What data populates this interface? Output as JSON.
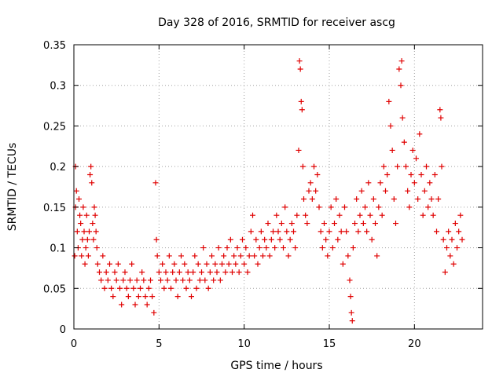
{
  "chart_data": {
    "type": "scatter",
    "title": "Day 328 of 2016, SRMTID for receiver ascg",
    "xlabel": "GPS time / hours",
    "ylabel": "SRMTID / TECUs",
    "xlim": [
      0,
      24
    ],
    "ylim": [
      0,
      0.35
    ],
    "x_ticks": [
      0,
      5,
      10,
      15,
      20
    ],
    "x_tick_labels": [
      "0",
      "5",
      "10",
      "15",
      "20"
    ],
    "y_ticks": [
      0,
      0.05,
      0.1,
      0.15,
      0.2,
      0.25,
      0.3,
      0.35
    ],
    "y_tick_labels": [
      "0",
      "0.05",
      "0.1",
      "0.15",
      "0.2",
      "0.25",
      "0.3",
      "0.35"
    ],
    "grid": true,
    "marker": "+",
    "color": "#e00000",
    "series": [
      {
        "name": "SRMTID",
        "points": [
          [
            0.05,
            0.09
          ],
          [
            0.1,
            0.2
          ],
          [
            0.1,
            0.15
          ],
          [
            0.15,
            0.17
          ],
          [
            0.2,
            0.12
          ],
          [
            0.25,
            0.1
          ],
          [
            0.3,
            0.16
          ],
          [
            0.35,
            0.14
          ],
          [
            0.4,
            0.13
          ],
          [
            0.45,
            0.09
          ],
          [
            0.5,
            0.11
          ],
          [
            0.55,
            0.15
          ],
          [
            0.6,
            0.12
          ],
          [
            0.65,
            0.08
          ],
          [
            0.7,
            0.1
          ],
          [
            0.75,
            0.14
          ],
          [
            0.8,
            0.11
          ],
          [
            0.85,
            0.09
          ],
          [
            0.9,
            0.12
          ],
          [
            0.95,
            0.19
          ],
          [
            1.0,
            0.2
          ],
          [
            1.05,
            0.18
          ],
          [
            1.1,
            0.13
          ],
          [
            1.15,
            0.11
          ],
          [
            1.2,
            0.15
          ],
          [
            1.25,
            0.14
          ],
          [
            1.3,
            0.12
          ],
          [
            1.35,
            0.1
          ],
          [
            1.4,
            0.08
          ],
          [
            1.5,
            0.07
          ],
          [
            1.6,
            0.06
          ],
          [
            1.7,
            0.09
          ],
          [
            1.8,
            0.05
          ],
          [
            1.9,
            0.07
          ],
          [
            2.0,
            0.06
          ],
          [
            2.1,
            0.08
          ],
          [
            2.2,
            0.05
          ],
          [
            2.3,
            0.04
          ],
          [
            2.4,
            0.07
          ],
          [
            2.5,
            0.06
          ],
          [
            2.6,
            0.08
          ],
          [
            2.7,
            0.05
          ],
          [
            2.8,
            0.03
          ],
          [
            2.9,
            0.06
          ],
          [
            3.0,
            0.07
          ],
          [
            3.1,
            0.05
          ],
          [
            3.2,
            0.04
          ],
          [
            3.3,
            0.06
          ],
          [
            3.4,
            0.08
          ],
          [
            3.5,
            0.05
          ],
          [
            3.6,
            0.03
          ],
          [
            3.7,
            0.06
          ],
          [
            3.8,
            0.04
          ],
          [
            3.9,
            0.05
          ],
          [
            4.0,
            0.07
          ],
          [
            4.1,
            0.06
          ],
          [
            4.2,
            0.04
          ],
          [
            4.3,
            0.03
          ],
          [
            4.4,
            0.05
          ],
          [
            4.5,
            0.06
          ],
          [
            4.6,
            0.04
          ],
          [
            4.7,
            0.02
          ],
          [
            4.8,
            0.18
          ],
          [
            4.85,
            0.11
          ],
          [
            4.9,
            0.09
          ],
          [
            5.0,
            0.07
          ],
          [
            5.1,
            0.06
          ],
          [
            5.2,
            0.08
          ],
          [
            5.3,
            0.05
          ],
          [
            5.4,
            0.07
          ],
          [
            5.5,
            0.06
          ],
          [
            5.6,
            0.09
          ],
          [
            5.7,
            0.05
          ],
          [
            5.8,
            0.07
          ],
          [
            5.9,
            0.08
          ],
          [
            6.0,
            0.06
          ],
          [
            6.1,
            0.04
          ],
          [
            6.2,
            0.07
          ],
          [
            6.3,
            0.09
          ],
          [
            6.4,
            0.06
          ],
          [
            6.5,
            0.08
          ],
          [
            6.6,
            0.05
          ],
          [
            6.7,
            0.07
          ],
          [
            6.8,
            0.06
          ],
          [
            6.9,
            0.04
          ],
          [
            7.0,
            0.07
          ],
          [
            7.1,
            0.09
          ],
          [
            7.2,
            0.05
          ],
          [
            7.3,
            0.08
          ],
          [
            7.4,
            0.06
          ],
          [
            7.5,
            0.07
          ],
          [
            7.6,
            0.1
          ],
          [
            7.7,
            0.06
          ],
          [
            7.8,
            0.08
          ],
          [
            7.9,
            0.05
          ],
          [
            8.0,
            0.07
          ],
          [
            8.1,
            0.09
          ],
          [
            8.2,
            0.06
          ],
          [
            8.3,
            0.08
          ],
          [
            8.4,
            0.07
          ],
          [
            8.5,
            0.1
          ],
          [
            8.6,
            0.06
          ],
          [
            8.7,
            0.08
          ],
          [
            8.8,
            0.09
          ],
          [
            8.9,
            0.07
          ],
          [
            9.0,
            0.1
          ],
          [
            9.1,
            0.08
          ],
          [
            9.2,
            0.11
          ],
          [
            9.3,
            0.07
          ],
          [
            9.4,
            0.09
          ],
          [
            9.5,
            0.08
          ],
          [
            9.6,
            0.1
          ],
          [
            9.7,
            0.07
          ],
          [
            9.8,
            0.09
          ],
          [
            9.9,
            0.11
          ],
          [
            10.0,
            0.08
          ],
          [
            10.1,
            0.1
          ],
          [
            10.2,
            0.07
          ],
          [
            10.3,
            0.09
          ],
          [
            10.4,
            0.12
          ],
          [
            10.5,
            0.14
          ],
          [
            10.6,
            0.09
          ],
          [
            10.7,
            0.11
          ],
          [
            10.8,
            0.08
          ],
          [
            10.9,
            0.1
          ],
          [
            11.0,
            0.12
          ],
          [
            11.1,
            0.09
          ],
          [
            11.2,
            0.11
          ],
          [
            11.3,
            0.1
          ],
          [
            11.4,
            0.13
          ],
          [
            11.5,
            0.09
          ],
          [
            11.6,
            0.11
          ],
          [
            11.7,
            0.12
          ],
          [
            11.8,
            0.1
          ],
          [
            11.9,
            0.14
          ],
          [
            12.0,
            0.12
          ],
          [
            12.1,
            0.11
          ],
          [
            12.2,
            0.13
          ],
          [
            12.3,
            0.1
          ],
          [
            12.4,
            0.15
          ],
          [
            12.5,
            0.12
          ],
          [
            12.6,
            0.09
          ],
          [
            12.7,
            0.11
          ],
          [
            12.8,
            0.13
          ],
          [
            12.9,
            0.12
          ],
          [
            13.0,
            0.1
          ],
          [
            13.1,
            0.14
          ],
          [
            13.2,
            0.22
          ],
          [
            13.25,
            0.33
          ],
          [
            13.3,
            0.32
          ],
          [
            13.35,
            0.28
          ],
          [
            13.4,
            0.27
          ],
          [
            13.45,
            0.2
          ],
          [
            13.5,
            0.16
          ],
          [
            13.6,
            0.14
          ],
          [
            13.7,
            0.13
          ],
          [
            13.8,
            0.17
          ],
          [
            13.9,
            0.18
          ],
          [
            14.0,
            0.16
          ],
          [
            14.1,
            0.2
          ],
          [
            14.2,
            0.17
          ],
          [
            14.3,
            0.19
          ],
          [
            14.4,
            0.15
          ],
          [
            14.5,
            0.12
          ],
          [
            14.6,
            0.1
          ],
          [
            14.7,
            0.13
          ],
          [
            14.8,
            0.11
          ],
          [
            14.9,
            0.09
          ],
          [
            15.0,
            0.12
          ],
          [
            15.1,
            0.15
          ],
          [
            15.2,
            0.1
          ],
          [
            15.3,
            0.13
          ],
          [
            15.4,
            0.16
          ],
          [
            15.5,
            0.11
          ],
          [
            15.6,
            0.14
          ],
          [
            15.7,
            0.12
          ],
          [
            15.8,
            0.08
          ],
          [
            15.9,
            0.15
          ],
          [
            16.0,
            0.12
          ],
          [
            16.1,
            0.09
          ],
          [
            16.2,
            0.06
          ],
          [
            16.25,
            0.04
          ],
          [
            16.3,
            0.02
          ],
          [
            16.35,
            0.01
          ],
          [
            16.4,
            0.1
          ],
          [
            16.5,
            0.13
          ],
          [
            16.6,
            0.16
          ],
          [
            16.7,
            0.12
          ],
          [
            16.8,
            0.14
          ],
          [
            16.9,
            0.17
          ],
          [
            17.0,
            0.13
          ],
          [
            17.1,
            0.15
          ],
          [
            17.2,
            0.12
          ],
          [
            17.3,
            0.18
          ],
          [
            17.4,
            0.14
          ],
          [
            17.5,
            0.11
          ],
          [
            17.6,
            0.16
          ],
          [
            17.7,
            0.13
          ],
          [
            17.8,
            0.09
          ],
          [
            17.9,
            0.15
          ],
          [
            18.0,
            0.18
          ],
          [
            18.1,
            0.14
          ],
          [
            18.2,
            0.2
          ],
          [
            18.3,
            0.17
          ],
          [
            18.4,
            0.19
          ],
          [
            18.5,
            0.28
          ],
          [
            18.6,
            0.25
          ],
          [
            18.7,
            0.22
          ],
          [
            18.8,
            0.16
          ],
          [
            18.9,
            0.13
          ],
          [
            19.0,
            0.2
          ],
          [
            19.1,
            0.32
          ],
          [
            19.2,
            0.3
          ],
          [
            19.25,
            0.33
          ],
          [
            19.3,
            0.26
          ],
          [
            19.4,
            0.23
          ],
          [
            19.5,
            0.2
          ],
          [
            19.6,
            0.17
          ],
          [
            19.7,
            0.15
          ],
          [
            19.8,
            0.19
          ],
          [
            19.9,
            0.22
          ],
          [
            20.0,
            0.18
          ],
          [
            20.1,
            0.21
          ],
          [
            20.2,
            0.16
          ],
          [
            20.3,
            0.24
          ],
          [
            20.4,
            0.19
          ],
          [
            20.5,
            0.14
          ],
          [
            20.6,
            0.17
          ],
          [
            20.7,
            0.2
          ],
          [
            20.8,
            0.15
          ],
          [
            20.9,
            0.18
          ],
          [
            21.0,
            0.16
          ],
          [
            21.1,
            0.14
          ],
          [
            21.2,
            0.19
          ],
          [
            21.3,
            0.12
          ],
          [
            21.4,
            0.16
          ],
          [
            21.5,
            0.27
          ],
          [
            21.55,
            0.26
          ],
          [
            21.6,
            0.2
          ],
          [
            21.7,
            0.11
          ],
          [
            21.8,
            0.07
          ],
          [
            21.9,
            0.1
          ],
          [
            22.0,
            0.12
          ],
          [
            22.1,
            0.09
          ],
          [
            22.2,
            0.11
          ],
          [
            22.3,
            0.08
          ],
          [
            22.4,
            0.13
          ],
          [
            22.5,
            0.1
          ],
          [
            22.6,
            0.12
          ],
          [
            22.7,
            0.14
          ],
          [
            22.8,
            0.11
          ]
        ]
      }
    ]
  }
}
